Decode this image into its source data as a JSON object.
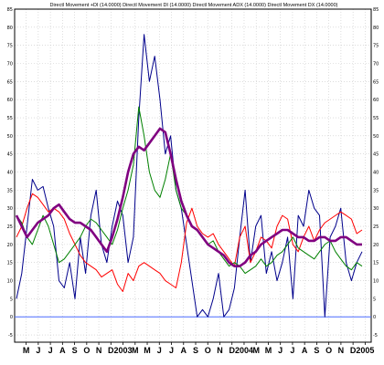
{
  "chart_data": {
    "type": "line",
    "title": "Directl Movement +DI (14.0000) Directl Movement DI (14.0000) Directl Movement ADX (14.0000) Directl Movement DX (14.0000)",
    "ylim": [
      -7,
      85
    ],
    "y_ticks_left": [
      "-5",
      "0",
      "5",
      "10",
      "15",
      "20",
      "25",
      "30",
      "35",
      "40",
      "45",
      "50",
      "55",
      "60",
      "65",
      "70",
      "75",
      "80",
      "85"
    ],
    "y_ticks_right": [
      "-5",
      "0",
      "5",
      "10",
      "15",
      "20",
      "25",
      "30",
      "35",
      "40",
      "45",
      "50",
      "55",
      "60",
      "65",
      "70",
      "75",
      "80",
      "85"
    ],
    "x_labels": [
      "M",
      "J",
      "J",
      "A",
      "S",
      "O",
      "N",
      "D",
      "2003",
      "M",
      "M",
      "J",
      "J",
      "A",
      "S",
      "O",
      "N",
      "D",
      "2004",
      "M",
      "M",
      "J",
      "J",
      "A",
      "S",
      "O",
      "N",
      "D",
      "2005"
    ],
    "reference_line": 0,
    "grid": true,
    "colors": {
      "dx": "#00008b",
      "plus_di": "#ff0000",
      "minus_di": "#008000",
      "adx": "#800080",
      "zero_line": "#4a6cff",
      "grid": "#c8c8c8"
    },
    "x": [
      0,
      6,
      12,
      18,
      24,
      30,
      36,
      42,
      48,
      54,
      60,
      66,
      72,
      78,
      84,
      90,
      96,
      102,
      108,
      114,
      120,
      126,
      132,
      138,
      144,
      150,
      156,
      162,
      168,
      174,
      180,
      186,
      192,
      198,
      204,
      210,
      216,
      222,
      228,
      234,
      240,
      246,
      252,
      258,
      264,
      270,
      276,
      282,
      288,
      294,
      300,
      306,
      312,
      318,
      324,
      330,
      336,
      342,
      348,
      354,
      360,
      366,
      372,
      378,
      384,
      390
    ],
    "series": [
      {
        "key": "dx",
        "values": [
          5,
          12,
          25,
          38,
          35,
          36,
          30,
          25,
          10,
          8,
          15,
          5,
          22,
          12,
          28,
          35,
          20,
          15,
          25,
          32,
          28,
          15,
          22,
          55,
          78,
          65,
          72,
          60,
          45,
          50,
          35,
          30,
          20,
          10,
          0,
          2,
          0,
          5,
          12,
          0,
          2,
          8,
          22,
          35,
          15,
          25,
          28,
          12,
          18,
          10,
          15,
          22,
          5,
          28,
          25,
          35,
          30,
          28,
          0,
          22,
          25,
          30,
          15,
          10,
          15,
          18
        ]
      },
      {
        "key": "plus_di",
        "values": [
          22,
          25,
          30,
          34,
          33,
          31,
          29,
          30,
          29,
          27,
          23,
          20,
          17,
          15,
          14,
          13,
          11,
          12,
          13,
          9,
          7,
          12,
          10,
          14,
          15,
          14,
          13,
          12,
          10,
          9,
          8,
          15,
          26,
          30,
          25,
          23,
          22,
          23,
          20,
          18,
          16,
          14,
          22,
          25,
          15,
          18,
          22,
          21,
          19,
          25,
          28,
          27,
          20,
          18,
          22,
          25,
          21,
          24,
          26,
          27,
          28,
          29,
          28,
          27,
          23,
          24
        ]
      },
      {
        "key": "minus_di",
        "values": [
          28,
          26,
          22,
          20,
          24,
          28,
          25,
          20,
          15,
          16,
          18,
          20,
          22,
          25,
          27,
          26,
          24,
          22,
          20,
          24,
          30,
          35,
          42,
          58,
          50,
          40,
          35,
          33,
          38,
          45,
          35,
          30,
          28,
          25,
          24,
          22,
          20,
          21,
          18,
          16,
          14,
          15,
          14,
          12,
          13,
          14,
          16,
          14,
          15,
          17,
          18,
          20,
          22,
          19,
          18,
          17,
          16,
          18,
          20,
          21,
          18,
          16,
          14,
          13,
          15,
          14
        ]
      },
      {
        "key": "adx",
        "values": [
          28,
          25,
          22,
          24,
          26,
          27,
          28,
          30,
          31,
          29,
          27,
          26,
          26,
          25,
          24,
          22,
          20,
          18,
          22,
          27,
          33,
          40,
          45,
          47,
          46,
          48,
          50,
          52,
          51,
          45,
          38,
          32,
          28,
          25,
          24,
          22,
          20,
          19,
          18,
          17,
          15,
          14,
          14,
          15,
          17,
          18,
          20,
          21,
          22,
          23,
          24,
          24,
          23,
          22,
          22,
          21,
          21,
          22,
          22,
          21,
          21,
          22,
          22,
          21,
          20,
          20
        ]
      }
    ]
  }
}
